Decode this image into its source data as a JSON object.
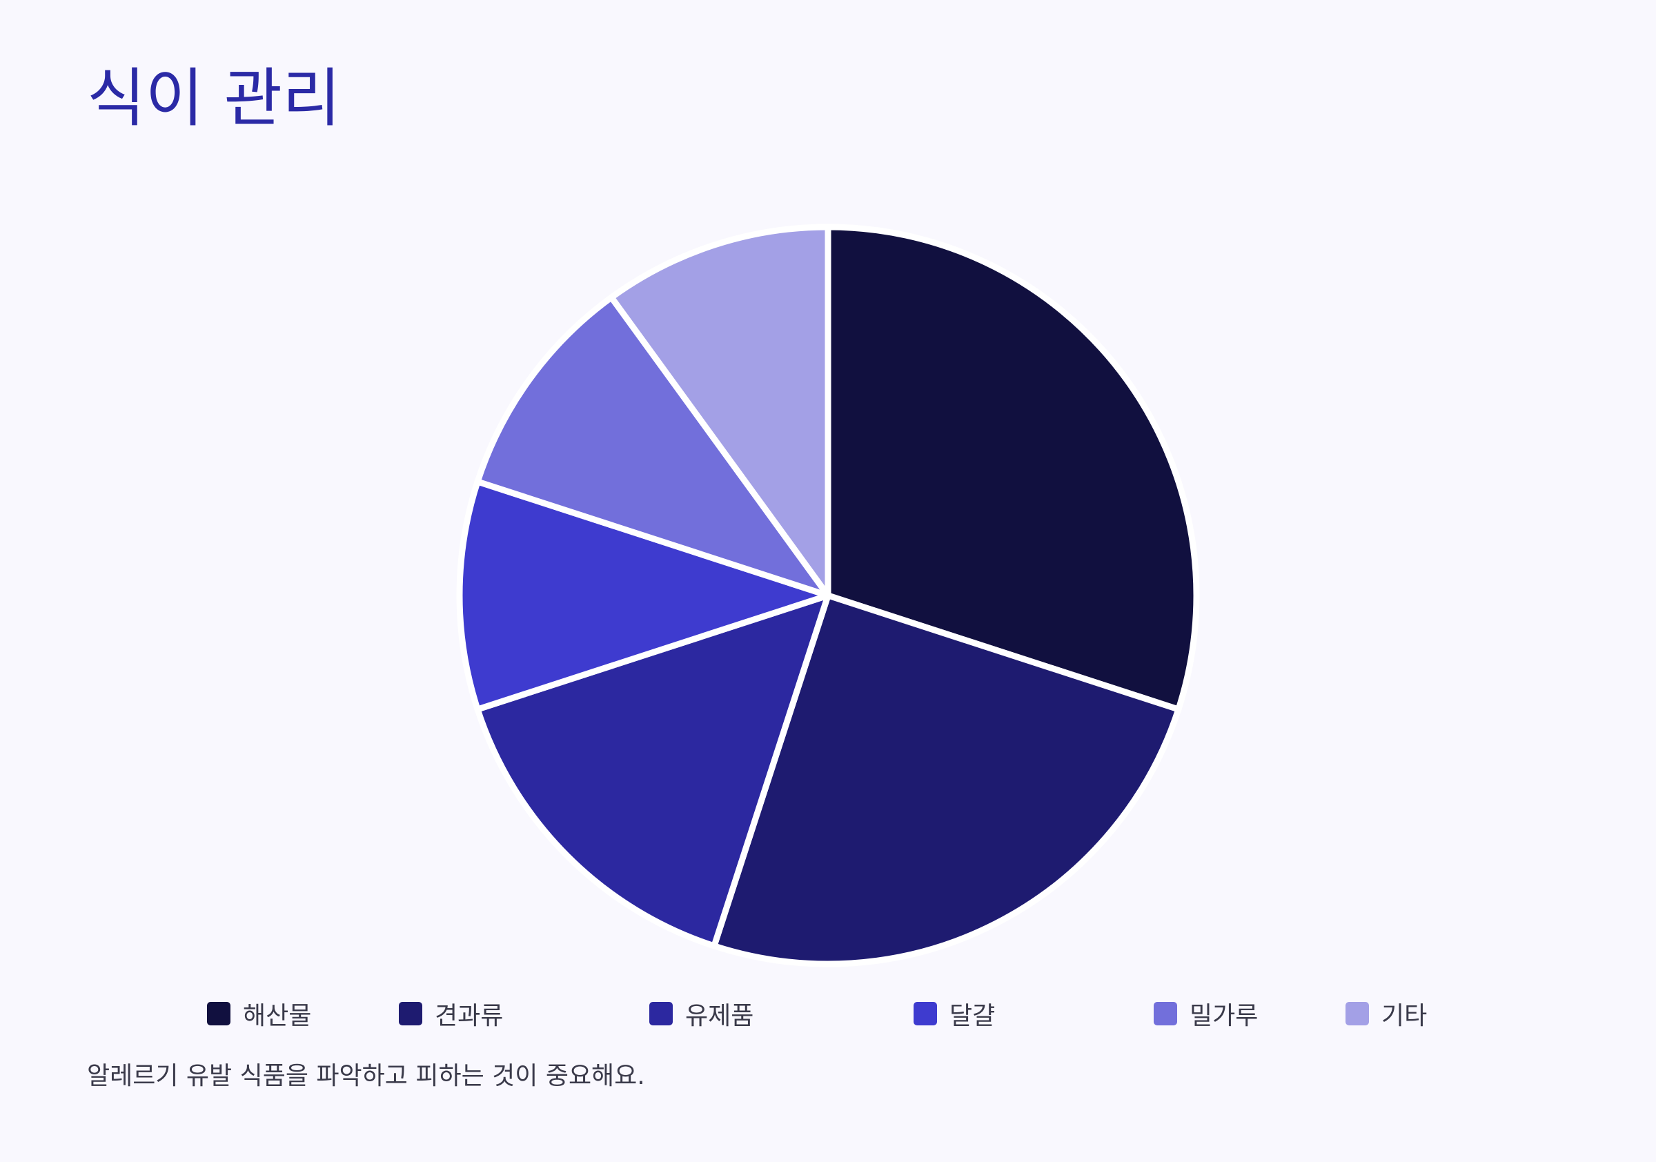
{
  "title": "식이 관리",
  "footnote": "알레르기 유발 식품을 파악하고 피하는 것이 중요해요.",
  "chart_data": {
    "type": "pie",
    "title": "식이 관리",
    "categories": [
      "해산물",
      "견과류",
      "유제품",
      "달걀",
      "밀가루",
      "기타"
    ],
    "values": [
      30,
      25,
      15,
      10,
      10,
      10
    ],
    "colors": [
      "#11103f",
      "#1e1b70",
      "#2c28a0",
      "#3e3bcf",
      "#726fdb",
      "#a3a0e6"
    ],
    "start_angle": "12 o'clock",
    "direction": "clockwise",
    "legend_position": "bottom"
  }
}
